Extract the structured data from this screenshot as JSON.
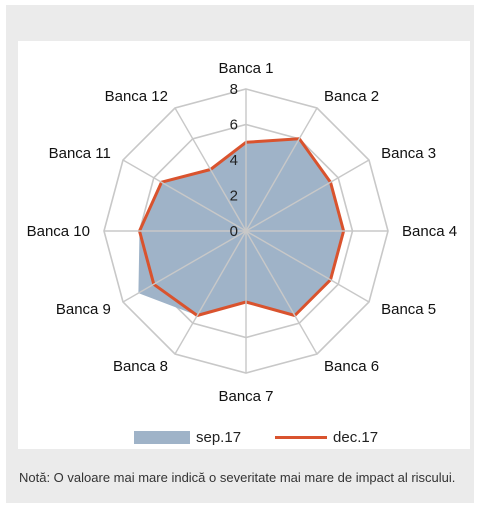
{
  "chart_data": {
    "type": "radar",
    "categories": [
      "Banca 1",
      "Banca 2",
      "Banca 3",
      "Banca 4",
      "Banca 5",
      "Banca 6",
      "Banca 7",
      "Banca 8",
      "Banca 9",
      "Banca 10",
      "Banca 11",
      "Banca 12"
    ],
    "series": [
      {
        "name": "sep.17",
        "values": [
          5,
          6,
          5.5,
          5.5,
          5.5,
          5.5,
          4,
          5.5,
          7,
          6,
          5.5,
          4
        ]
      },
      {
        "name": "dec.17",
        "values": [
          5,
          6,
          5.5,
          5.5,
          5.5,
          5.5,
          4,
          5.5,
          6,
          6,
          5.5,
          4
        ]
      }
    ],
    "rlim": [
      0,
      8
    ],
    "ticks": [
      "0",
      "2",
      "4",
      "6",
      "8"
    ],
    "grid": true,
    "legend_position": "bottom",
    "colors": {
      "sep.17": "#9fb3c8",
      "dec.17": "#d9532e",
      "grid": "#c8c8c8"
    }
  },
  "note": "Notă: O valoare mai mare indică o severitate mai mare de impact al riscului."
}
